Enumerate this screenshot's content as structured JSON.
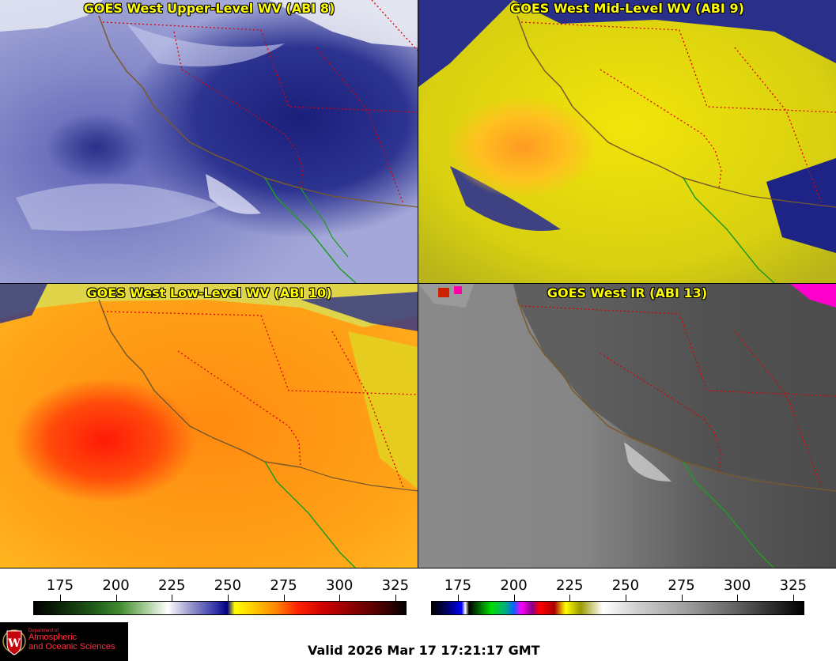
{
  "panels": [
    {
      "title": "GOES West Upper-Level WV (ABI 8)",
      "theme": "upper"
    },
    {
      "title": "GOES West Mid-Level WV (ABI 9)",
      "theme": "mid"
    },
    {
      "title": "GOES West Low-Level WV (ABI 10)",
      "theme": "low"
    },
    {
      "title": "GOES West IR (ABI 13)",
      "theme": "ir"
    }
  ],
  "colorbars": {
    "wv": {
      "ticks": [
        "175",
        "200",
        "225",
        "250",
        "275",
        "300",
        "325"
      ],
      "min": 163,
      "max": 330
    },
    "ir": {
      "ticks": [
        "175",
        "200",
        "225",
        "250",
        "275",
        "300",
        "325"
      ],
      "min": 163,
      "max": 330
    }
  },
  "logo": {
    "dept": "Department of",
    "line1": "Atmospheric",
    "line2": "and Oceanic Sciences",
    "icon": "uw-crest-icon"
  },
  "valid_time": "Valid 2026 Mar 17 17:21:17 GMT",
  "colors": {
    "title_text": "#ffff00",
    "state_borders": "#dd0000",
    "coastline": "#7a5a2a",
    "mexico_coast": "#229922"
  }
}
